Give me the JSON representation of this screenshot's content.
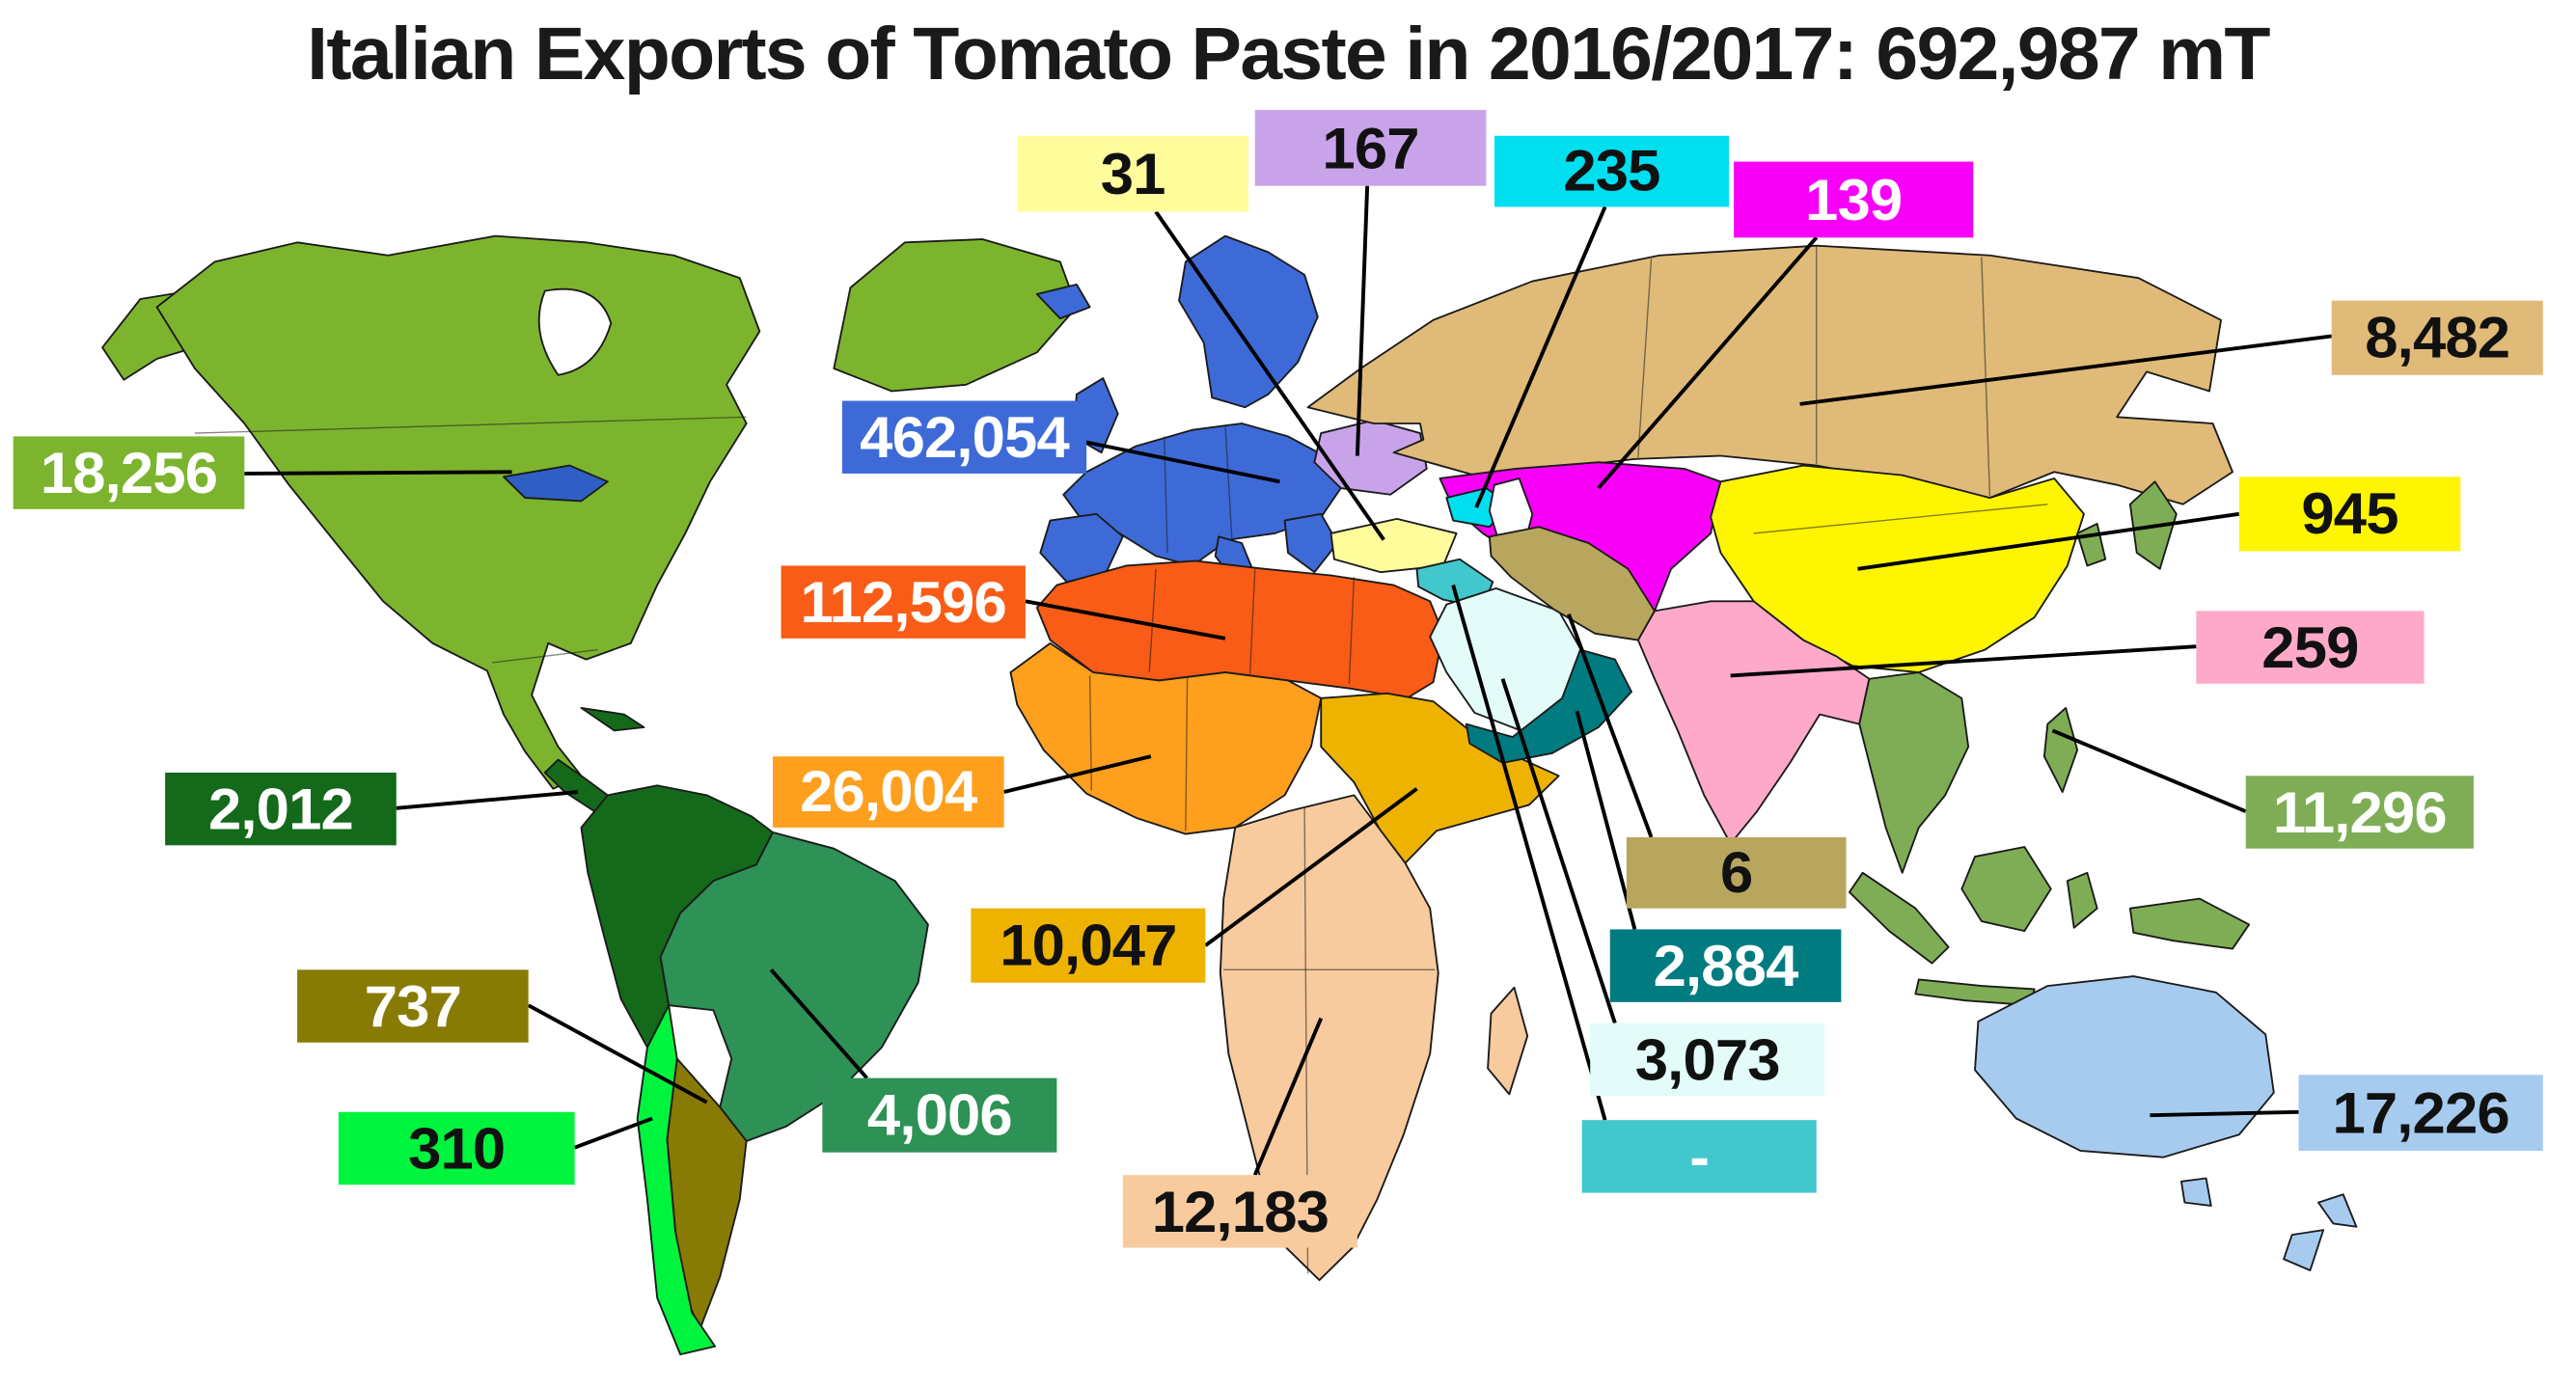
{
  "title": "Italian Exports of Tomato Paste in 2016/2017: 692,987 mT",
  "chart_data": {
    "type": "choropleth",
    "title": "Italian Exports of Tomato Paste in 2016/2017",
    "total": "692,987",
    "unit": "mT",
    "season": "2016/2017",
    "legend_position": "none",
    "regions": [
      {
        "id": "europe",
        "value": "462,054",
        "color": "#3E6AD8",
        "text_color": "#FFFFFF",
        "label": [
          510,
          248,
          148,
          45
        ],
        "line": [
          650,
          272,
          775,
          298
        ]
      },
      {
        "id": "eastern-europe",
        "value": "167",
        "color": "#C9A3EA",
        "text_color": "#111111",
        "label": [
          760,
          68,
          140,
          47
        ],
        "line": [
          828,
          115,
          822,
          282
        ]
      },
      {
        "id": "turkey",
        "value": "31",
        "color": "#FFFC9C",
        "text_color": "#111111",
        "label": [
          616,
          84,
          140,
          47
        ],
        "line": [
          700,
          131,
          838,
          334
        ]
      },
      {
        "id": "caucasus",
        "value": "235",
        "color": "#00DFF0",
        "text_color": "#111111",
        "label": [
          905,
          84,
          142,
          44
        ],
        "line": [
          972,
          128,
          894,
          314
        ]
      },
      {
        "id": "central-asia",
        "value": "139",
        "color": "#F800F8",
        "text_color": "#FFFFFF",
        "label": [
          1050,
          100,
          145,
          47
        ],
        "line": [
          1100,
          147,
          968,
          302
        ]
      },
      {
        "id": "russia",
        "value": "8,482",
        "color": "#E0BA78",
        "text_color": "#111111",
        "label": [
          1412,
          186,
          128,
          46
        ],
        "line": [
          1412,
          208,
          1090,
          250
        ]
      },
      {
        "id": "china",
        "value": "945",
        "color": "#FDF501",
        "text_color": "#111111",
        "label": [
          1356,
          295,
          134,
          46
        ],
        "line": [
          1356,
          318,
          1125,
          352
        ]
      },
      {
        "id": "south-asia",
        "value": "259",
        "color": "#FFA9CA",
        "text_color": "#111111",
        "label": [
          1330,
          378,
          138,
          45
        ],
        "line": [
          1330,
          400,
          1048,
          418
        ]
      },
      {
        "id": "southeast-asia",
        "value": "11,296",
        "color": "#7FAD55",
        "text_color": "#FFFFFF",
        "label": [
          1360,
          480,
          138,
          45
        ],
        "line": [
          1360,
          502,
          1243,
          452
        ]
      },
      {
        "id": "oceania",
        "value": "17,226",
        "color": "#A7CBEF",
        "text_color": "#111111",
        "label": [
          1392,
          665,
          148,
          47
        ],
        "line": [
          1392,
          688,
          1302,
          690
        ]
      },
      {
        "id": "north-africa",
        "value": "112,596",
        "color": "#F95C17",
        "text_color": "#FFFFFF",
        "label": [
          473,
          350,
          148,
          45
        ],
        "line": [
          621,
          372,
          742,
          395
        ]
      },
      {
        "id": "west-africa",
        "value": "26,004",
        "color": "#FF9F1E",
        "text_color": "#FFFFFF",
        "label": [
          468,
          468,
          140,
          44
        ],
        "line": [
          608,
          490,
          697,
          468
        ]
      },
      {
        "id": "east-africa",
        "value": "10,047",
        "color": "#EEB201",
        "text_color": "#111111",
        "label": [
          588,
          562,
          142,
          46
        ],
        "line": [
          730,
          585,
          858,
          488
        ]
      },
      {
        "id": "southern-africa",
        "value": "12,183",
        "color": "#F7CB9E",
        "text_color": "#111111",
        "label": [
          680,
          727,
          142,
          45
        ],
        "line": [
          760,
          727,
          800,
          630
        ]
      },
      {
        "id": "north-america",
        "value": "18,256",
        "color": "#7DB42E",
        "text_color": "#FFFFFF",
        "label": [
          8,
          270,
          140,
          45
        ],
        "line": [
          148,
          293,
          310,
          292
        ]
      },
      {
        "id": "central-america",
        "value": "2,012",
        "color": "#14691B",
        "text_color": "#FFFFFF",
        "label": [
          100,
          478,
          140,
          45
        ],
        "line": [
          240,
          500,
          350,
          490
        ]
      },
      {
        "id": "brazil",
        "value": "4,006",
        "color": "#2E9156",
        "text_color": "#FFFFFF",
        "label": [
          498,
          667,
          142,
          46
        ],
        "line": [
          525,
          667,
          467,
          600
        ]
      },
      {
        "id": "chile",
        "value": "310",
        "color": "#00F43E",
        "text_color": "#111111",
        "label": [
          205,
          688,
          143,
          45
        ],
        "line": [
          348,
          710,
          395,
          692
        ]
      },
      {
        "id": "argentina",
        "value": "737",
        "color": "#877B06",
        "text_color": "#FFFFFF",
        "label": [
          180,
          600,
          140,
          45
        ],
        "line": [
          320,
          622,
          428,
          682
        ]
      },
      {
        "id": "iran",
        "value": "6",
        "color": "#B8A65E",
        "text_color": "#111111",
        "label": [
          985,
          518,
          133,
          44
        ],
        "line": [
          1000,
          518,
          950,
          380
        ]
      },
      {
        "id": "gulf-oman",
        "value": "2,884",
        "color": "#007B80",
        "text_color": "#FFFFFF",
        "label": [
          975,
          575,
          140,
          45
        ],
        "line": [
          990,
          575,
          955,
          440
        ]
      },
      {
        "id": "saudi-arabia",
        "value": "3,073",
        "color": "#E3FBF9",
        "text_color": "#111111",
        "label": [
          963,
          633,
          142,
          45
        ],
        "line": [
          978,
          633,
          910,
          420
        ]
      },
      {
        "id": "levant",
        "value": "-",
        "color": "#41C7CC",
        "text_color": "#FFFFFF",
        "label": [
          958,
          693,
          142,
          45
        ],
        "line": [
          972,
          693,
          880,
          362
        ]
      }
    ]
  },
  "map_colors": {
    "ocean": "#FFFFFF",
    "outline": "#1B1B1B",
    "lake": "#2F5FC4",
    "inland_sea": "#FFFFFF"
  }
}
